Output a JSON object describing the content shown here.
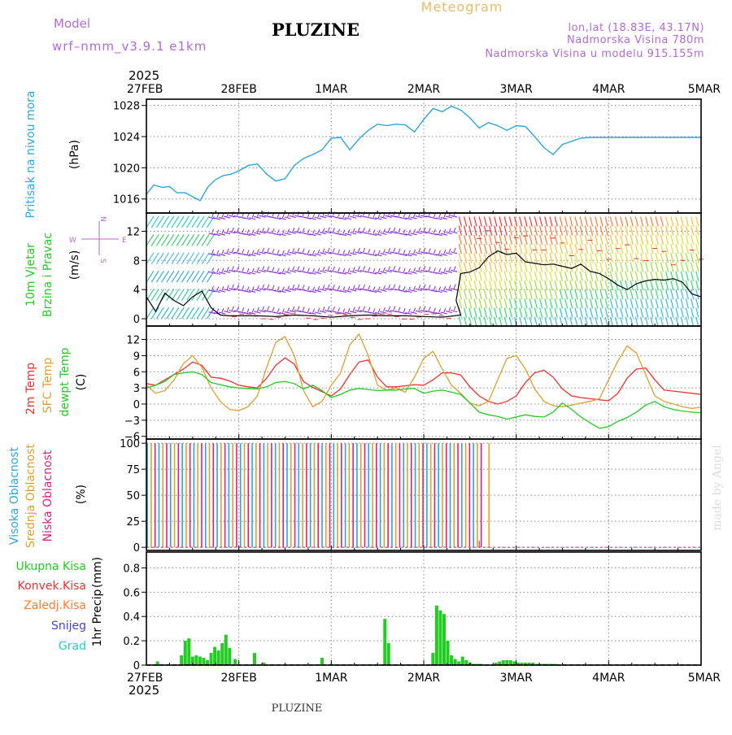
{
  "header": {
    "model_label": "Model",
    "model_name": "wrf–nmm_v3.9.1  e1km",
    "station": "PLUZINE",
    "product": "Meteogram",
    "coords": "lon,lat (18.83E, 43.17N)",
    "elevation": "Nadmorska Visina 780m",
    "model_elevation": "Nadmorska Visina u modelu 915.155m"
  },
  "footer": {
    "station": "PLUZINE",
    "credit": "made by Angel"
  },
  "colors": {
    "pressure": "#2aa7e0",
    "temp2m": "#f03030",
    "sfc_temp": "#e0a030",
    "dewpoint": "#22cc22",
    "wind_speed": "#000000",
    "cloud_high": "#2aa7e0",
    "cloud_mid": "#e0a030",
    "cloud_low": "#e0207a",
    "precip_total": "#22cc22",
    "precip_conv": "#f03030",
    "precip_zaledj": "#ff7a30",
    "snow": "#4444dd",
    "hail": "#22cccc"
  },
  "chart_data": [
    {
      "type": "line",
      "id": "pressure",
      "year": "2025",
      "x_ticks": [
        "27FEB",
        "28FEB",
        "1MAR",
        "2MAR",
        "3MAR",
        "4MAR",
        "5MAR"
      ],
      "ylabel_name": "Pritisak na nivou mora",
      "ylabel_unit": "(hPa)",
      "ylim": [
        1014.2,
        1028.8
      ],
      "y_ticks": [
        1016,
        1020,
        1024,
        1028
      ],
      "grid": true,
      "series": [
        {
          "name": "Pritisak na nivou mora",
          "x": [
            0.0,
            0.08,
            0.17,
            0.25,
            0.33,
            0.42,
            0.5,
            0.58,
            0.67,
            0.75,
            0.83,
            0.92,
            1.0,
            1.1,
            1.2,
            1.3,
            1.4,
            1.5,
            1.6,
            1.7,
            1.8,
            1.9,
            2.0,
            2.1,
            2.2,
            2.3,
            2.4,
            2.5,
            2.6,
            2.7,
            2.8,
            2.9,
            3.0,
            3.1,
            3.2,
            3.3,
            3.4,
            3.5,
            3.6,
            3.7,
            3.8,
            3.9,
            4.0,
            4.1,
            4.2,
            4.3,
            4.4,
            4.5,
            4.6,
            4.7,
            4.8,
            4.9,
            5.0,
            5.1,
            5.2,
            5.3,
            5.4,
            5.5,
            5.6,
            5.7,
            5.8,
            5.9,
            6.0
          ],
          "y": [
            1016.6,
            1017.8,
            1017.5,
            1017.6,
            1016.8,
            1016.8,
            1016.3,
            1015.8,
            1017.6,
            1018.5,
            1019.0,
            1019.2,
            1019.6,
            1020.3,
            1020.5,
            1019.2,
            1018.3,
            1018.6,
            1020.3,
            1021.2,
            1021.7,
            1022.3,
            1023.8,
            1023.9,
            1022.3,
            1023.7,
            1024.8,
            1025.6,
            1025.4,
            1025.6,
            1025.5,
            1024.6,
            1026.2,
            1027.6,
            1027.2,
            1027.9,
            1027.4,
            1026.4,
            1025.1,
            1025.8,
            1025.4,
            1024.8,
            1025.4,
            1025.3,
            1024.0,
            1022.6,
            1021.7,
            1023.0,
            1023.4,
            1023.8,
            1023.9,
            1023.9,
            1023.9,
            1023.9,
            1023.9,
            1023.9,
            1023.9,
            1023.9,
            1023.9,
            1023.9,
            1023.9,
            1023.9,
            1023.9
          ]
        }
      ]
    },
    {
      "type": "line",
      "id": "wind",
      "ylabel_name_1": "10m Vjetar",
      "ylabel_name_2": "Brzina i Pravac",
      "ylabel_unit": "(m/s)",
      "dir_legend": {
        "n": "N",
        "s": "S",
        "w": "W",
        "e": "E"
      },
      "ylim": [
        -1,
        14.5
      ],
      "y_ticks": [
        0,
        4,
        8,
        12
      ],
      "grid": true,
      "series": [
        {
          "name": "10m Vjetar Brzina",
          "x": [
            0.0,
            0.1,
            0.2,
            0.3,
            0.4,
            0.5,
            0.6,
            0.7,
            0.8,
            0.9,
            1.0,
            1.2,
            1.4,
            1.6,
            1.8,
            2.0,
            2.2,
            2.4,
            2.6,
            2.8,
            3.0,
            3.2,
            3.4,
            3.35,
            3.4,
            3.5,
            3.6,
            3.7,
            3.8,
            3.9,
            4.0,
            4.1,
            4.2,
            4.3,
            4.4,
            4.5,
            4.6,
            4.7,
            4.8,
            4.9,
            5.0,
            5.1,
            5.2,
            5.3,
            5.4,
            5.5,
            5.6,
            5.7,
            5.8,
            5.9,
            6.0
          ],
          "y": [
            3.0,
            1.0,
            3.5,
            2.5,
            1.8,
            3.0,
            3.8,
            1.5,
            0.5,
            0.4,
            0.4,
            0.4,
            0.3,
            0.5,
            0.4,
            0.2,
            0.4,
            0.5,
            0.4,
            0.4,
            0.3,
            0.2,
            0.5,
            2.5,
            6.2,
            6.4,
            7.0,
            8.5,
            9.3,
            8.8,
            9.0,
            7.8,
            7.6,
            7.4,
            7.5,
            7.2,
            6.9,
            7.5,
            6.5,
            6.2,
            5.5,
            4.6,
            4.0,
            4.8,
            5.2,
            5.4,
            5.3,
            5.5,
            5.0,
            3.4,
            3.0
          ]
        }
      ]
    },
    {
      "type": "line",
      "id": "temperature",
      "ylabel_names": [
        "2m Temp",
        "SFC Temp",
        "dewpt Temp"
      ],
      "ylabel_unit": "(C)",
      "ylim": [
        -6.5,
        14.5
      ],
      "y_ticks": [
        -6,
        -3,
        0,
        3,
        6,
        9,
        12
      ],
      "grid": true,
      "series": [
        {
          "name": "2m Temp",
          "x": [
            0.0,
            0.1,
            0.2,
            0.3,
            0.4,
            0.5,
            0.6,
            0.7,
            0.8,
            0.9,
            1.0,
            1.1,
            1.2,
            1.3,
            1.4,
            1.5,
            1.6,
            1.7,
            1.8,
            1.9,
            2.0,
            2.1,
            2.2,
            2.3,
            2.4,
            2.5,
            2.6,
            2.7,
            2.8,
            2.9,
            3.0,
            3.1,
            3.2,
            3.3,
            3.4,
            3.5,
            3.6,
            3.7,
            3.8,
            3.9,
            4.0,
            4.1,
            4.2,
            4.3,
            4.4,
            4.5,
            4.6,
            4.7,
            4.8,
            4.9,
            5.0,
            5.1,
            5.2,
            5.3,
            5.4,
            5.5,
            5.6,
            5.7,
            5.8,
            5.9,
            6.0
          ],
          "y": [
            3.8,
            3.5,
            4.5,
            5.5,
            6.5,
            7.8,
            7.2,
            5.0,
            4.8,
            4.3,
            3.5,
            3.2,
            3.0,
            4.8,
            7.2,
            8.6,
            7.4,
            4.2,
            3.1,
            2.3,
            1.5,
            2.8,
            5.5,
            7.8,
            8.2,
            5.0,
            3.2,
            3.2,
            3.4,
            3.6,
            3.5,
            4.5,
            5.8,
            5.8,
            5.4,
            3.2,
            1.5,
            0.5,
            0.0,
            0.5,
            1.5,
            4.0,
            5.8,
            6.3,
            5.0,
            2.8,
            1.5,
            1.2,
            1.0,
            0.8,
            0.6,
            2.0,
            4.8,
            6.5,
            6.7,
            4.5,
            2.6,
            2.4,
            2.2,
            2.0,
            1.8
          ]
        },
        {
          "name": "SFC Temp",
          "x": [
            0.0,
            0.1,
            0.2,
            0.3,
            0.4,
            0.5,
            0.6,
            0.7,
            0.8,
            0.9,
            1.0,
            1.1,
            1.2,
            1.3,
            1.4,
            1.5,
            1.6,
            1.7,
            1.8,
            1.9,
            2.0,
            2.1,
            2.2,
            2.3,
            2.4,
            2.5,
            2.6,
            2.7,
            2.8,
            2.9,
            3.0,
            3.1,
            3.2,
            3.3,
            3.4,
            3.5,
            3.6,
            3.7,
            3.8,
            3.9,
            4.0,
            4.1,
            4.2,
            4.3,
            4.4,
            4.5,
            4.6,
            4.7,
            4.8,
            4.9,
            5.0,
            5.1,
            5.2,
            5.3,
            5.4,
            5.5,
            5.6,
            5.7,
            5.8,
            5.9,
            6.0
          ],
          "y": [
            3.5,
            2.0,
            2.5,
            4.5,
            7.5,
            9.0,
            6.8,
            3.0,
            0.5,
            -1.0,
            -1.2,
            -0.5,
            1.5,
            6.8,
            11.5,
            12.5,
            9.0,
            2.5,
            -0.5,
            0.5,
            3.5,
            5.8,
            11.0,
            13.0,
            9.0,
            3.5,
            2.6,
            3.0,
            2.2,
            5.0,
            8.5,
            9.8,
            6.5,
            3.5,
            2.0,
            0.2,
            -0.3,
            0.5,
            4.5,
            8.5,
            9.0,
            6.5,
            2.8,
            0.5,
            -0.3,
            -0.5,
            -0.2,
            0.2,
            0.5,
            1.0,
            4.5,
            8.0,
            10.8,
            9.5,
            5.5,
            1.5,
            0.5,
            0.0,
            -0.5,
            -0.8,
            -0.6
          ]
        },
        {
          "name": "dewpt Temp",
          "x": [
            0.0,
            0.1,
            0.2,
            0.3,
            0.4,
            0.5,
            0.6,
            0.7,
            0.8,
            0.9,
            1.0,
            1.1,
            1.2,
            1.3,
            1.4,
            1.5,
            1.6,
            1.7,
            1.8,
            1.9,
            2.0,
            2.1,
            2.2,
            2.3,
            2.4,
            2.5,
            2.6,
            2.7,
            2.8,
            2.9,
            3.0,
            3.1,
            3.2,
            3.3,
            3.4,
            3.5,
            3.6,
            3.7,
            3.8,
            3.9,
            4.0,
            4.1,
            4.2,
            4.3,
            4.4,
            4.5,
            4.6,
            4.7,
            4.8,
            4.9,
            5.0,
            5.1,
            5.2,
            5.3,
            5.4,
            5.5,
            5.6,
            5.7,
            5.8,
            5.9,
            6.0
          ],
          "y": [
            3.0,
            3.5,
            4.2,
            5.5,
            5.8,
            6.0,
            5.5,
            4.0,
            3.6,
            3.2,
            3.0,
            2.9,
            2.8,
            3.2,
            4.0,
            4.2,
            3.8,
            2.8,
            3.5,
            2.5,
            1.2,
            1.8,
            2.6,
            2.9,
            2.7,
            2.5,
            2.6,
            2.6,
            2.8,
            2.9,
            2.0,
            2.4,
            2.6,
            2.2,
            1.8,
            0.2,
            -1.5,
            -2.0,
            -2.3,
            -2.8,
            -2.4,
            -2.0,
            -2.3,
            -2.4,
            -1.5,
            0.2,
            -1.0,
            -2.4,
            -3.5,
            -4.5,
            -4.2,
            -3.2,
            -2.5,
            -1.5,
            -0.2,
            0.5,
            -0.5,
            -1.0,
            -1.3,
            -1.5,
            -1.6
          ]
        }
      ]
    },
    {
      "type": "bar",
      "id": "clouds",
      "ylabel_names": [
        "Visoka Oblacnost",
        "Srednja Oblacnost",
        "Niska Oblacnost"
      ],
      "ylabel_unit": "(%)",
      "ylim": [
        -3,
        104
      ],
      "y_ticks": [
        0,
        25,
        50,
        75,
        100
      ],
      "grid": true,
      "series": [
        {
          "name": "Visoka Oblacnost",
          "x_range": [
            0.0,
            3.62
          ],
          "value": 100
        },
        {
          "name": "Srednja Oblacnost",
          "x_range": [
            0.0,
            3.75
          ],
          "value": 100
        },
        {
          "name": "Niska Oblacnost",
          "x_range": [
            0.0,
            3.7
          ],
          "value": 100
        }
      ]
    },
    {
      "type": "bar",
      "id": "precip",
      "legend": [
        "Ukupna Kisa",
        "Konvek.Kisa",
        "Zaledj.Kisa",
        "Snijeg",
        "Grad"
      ],
      "ylabel_name": "1hr Precip",
      "ylabel_unit": "(mm)",
      "ylim": [
        0,
        0.93
      ],
      "y_ticks": [
        0,
        0.2,
        0.4,
        0.6,
        0.8
      ],
      "y_tick_labels": [
        "0",
        "0.2",
        "0.4",
        "0.6",
        "0.8"
      ],
      "grid": true,
      "series": [
        {
          "name": "Ukupna Kisa",
          "x": [
            0.12,
            0.38,
            0.42,
            0.46,
            0.5,
            0.54,
            0.58,
            0.62,
            0.66,
            0.7,
            0.74,
            0.78,
            0.82,
            0.86,
            0.9,
            0.96,
            1.17,
            1.27,
            1.9,
            2.0,
            2.58,
            2.62,
            3.1,
            3.14,
            3.18,
            3.22,
            3.26,
            3.3,
            3.34,
            3.38,
            3.42,
            3.46,
            3.5,
            3.54,
            3.58,
            3.62,
            3.78,
            3.82,
            3.86,
            3.9,
            3.94,
            3.98,
            4.02,
            4.06,
            4.1,
            4.14,
            4.18,
            4.22,
            4.26,
            4.3,
            4.34,
            4.38,
            4.42
          ],
          "y": [
            0.03,
            0.08,
            0.2,
            0.22,
            0.07,
            0.08,
            0.07,
            0.06,
            0.04,
            0.1,
            0.15,
            0.12,
            0.18,
            0.25,
            0.14,
            0.05,
            0.1,
            0.02,
            0.06,
            0.01,
            0.38,
            0.18,
            0.1,
            0.49,
            0.45,
            0.42,
            0.2,
            0.08,
            0.05,
            0.03,
            0.07,
            0.04,
            0.02,
            0.01,
            0.01,
            0.01,
            0.02,
            0.03,
            0.04,
            0.04,
            0.04,
            0.03,
            0.02,
            0.02,
            0.02,
            0.02,
            0.02,
            0.01,
            0.01,
            0.01,
            0.01,
            0.01,
            0.01
          ]
        }
      ]
    }
  ]
}
